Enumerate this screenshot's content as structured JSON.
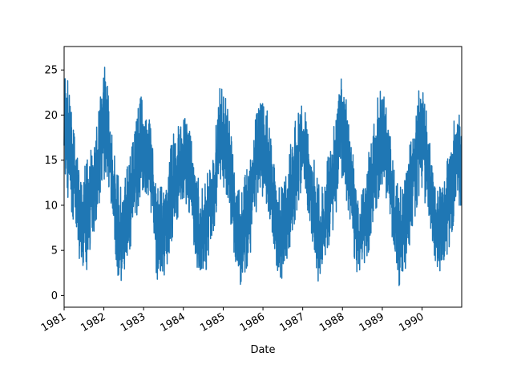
{
  "chart_data": {
    "type": "line",
    "title": "",
    "xlabel": "Date",
    "ylabel": "",
    "xlim": [
      "1981-01-01",
      "1990-12-31"
    ],
    "ylim": [
      -1.3,
      27.6
    ],
    "y_ticks": [
      0,
      5,
      10,
      15,
      20,
      25
    ],
    "x_ticks": [
      {
        "label": "1981",
        "date": "1981-01-01"
      },
      {
        "label": "1982",
        "date": "1982-01-01"
      },
      {
        "label": "1983",
        "date": "1983-01-01"
      },
      {
        "label": "1984",
        "date": "1984-01-01"
      },
      {
        "label": "1985",
        "date": "1985-01-01"
      },
      {
        "label": "1986",
        "date": "1986-01-01"
      },
      {
        "label": "1987",
        "date": "1987-01-01"
      },
      {
        "label": "1988",
        "date": "1988-01-01"
      },
      {
        "label": "1989",
        "date": "1989-01-01"
      },
      {
        "label": "1990",
        "date": "1990-01-01"
      }
    ],
    "grid": false,
    "line_color": "#1f77b4",
    "series": [
      {
        "x": [
          "1981-01-01",
          "1981-02-01",
          "1981-03-01",
          "1981-04-01",
          "1981-05-01",
          "1981-06-01",
          "1981-07-01",
          "1981-08-01",
          "1981-09-01",
          "1981-10-01",
          "1981-11-01",
          "1981-12-01",
          "1982-01-01",
          "1982-02-01",
          "1982-03-01",
          "1982-04-01",
          "1982-05-01",
          "1982-06-01",
          "1982-07-01",
          "1982-08-01",
          "1982-09-01",
          "1982-10-01",
          "1982-11-01",
          "1982-12-01",
          "1983-01-01",
          "1983-02-01",
          "1983-03-01",
          "1983-04-01",
          "1983-05-01",
          "1983-06-01",
          "1983-07-01",
          "1983-08-01",
          "1983-09-01",
          "1983-10-01",
          "1983-11-01",
          "1983-12-01",
          "1984-01-01",
          "1984-02-01",
          "1984-03-01",
          "1984-04-01",
          "1984-05-01",
          "1984-06-01",
          "1984-07-01",
          "1984-08-01",
          "1984-09-01",
          "1984-10-01",
          "1984-11-01",
          "1984-12-01",
          "1985-01-01",
          "1985-02-01",
          "1985-03-01",
          "1985-04-01",
          "1985-05-01",
          "1985-06-01",
          "1985-07-01",
          "1985-08-01",
          "1985-09-01",
          "1985-10-01",
          "1985-11-01",
          "1985-12-01",
          "1986-01-01",
          "1986-02-01",
          "1986-03-01",
          "1986-04-01",
          "1986-05-01",
          "1986-06-01",
          "1986-07-01",
          "1986-08-01",
          "1986-09-01",
          "1986-10-01",
          "1986-11-01",
          "1986-12-01",
          "1987-01-01",
          "1987-02-01",
          "1987-03-01",
          "1987-04-01",
          "1987-05-01",
          "1987-06-01",
          "1987-07-01",
          "1987-08-01",
          "1987-09-01",
          "1987-10-01",
          "1987-11-01",
          "1987-12-01",
          "1988-01-01",
          "1988-02-01",
          "1988-03-01",
          "1988-04-01",
          "1988-05-01",
          "1988-06-01",
          "1988-07-01",
          "1988-08-01",
          "1988-09-01",
          "1988-10-01",
          "1988-11-01",
          "1988-12-01",
          "1989-01-01",
          "1989-02-01",
          "1989-03-01",
          "1989-04-01",
          "1989-05-01",
          "1989-06-01",
          "1989-07-01",
          "1989-08-01",
          "1989-09-01",
          "1989-10-01",
          "1989-11-01",
          "1989-12-01",
          "1990-01-01",
          "1990-02-01",
          "1990-03-01",
          "1990-04-01",
          "1990-05-01",
          "1990-06-01",
          "1990-07-01",
          "1990-08-01",
          "1990-09-01",
          "1990-10-01",
          "1990-11-01",
          "1990-12-01"
        ],
        "y_high": [
          25,
          24,
          21,
          18,
          16,
          13,
          14,
          15,
          16,
          17,
          19,
          22,
          26,
          24,
          20,
          16,
          14,
          12,
          12,
          14,
          16,
          18,
          20,
          22,
          22,
          21,
          19,
          16,
          14,
          12,
          12,
          14,
          16,
          18,
          19,
          20,
          20,
          20,
          18,
          16,
          14,
          12,
          12,
          13,
          15,
          18,
          19,
          24,
          22,
          22,
          19,
          16,
          13,
          12,
          12,
          14,
          16,
          18,
          20,
          21,
          22,
          21,
          19,
          16,
          13,
          12,
          12,
          14,
          16,
          18,
          20,
          21,
          21,
          20,
          18,
          16,
          14,
          12,
          12,
          14,
          16,
          18,
          20,
          24,
          24,
          22,
          19,
          16,
          14,
          12,
          12,
          14,
          16,
          18,
          20,
          23,
          23,
          21,
          19,
          16,
          13,
          12,
          12,
          14,
          16,
          18,
          20,
          23,
          23,
          21,
          19,
          16,
          13,
          12,
          12,
          14,
          16,
          18,
          20,
          20
        ],
        "y_low": [
          12,
          11,
          10,
          8,
          6,
          3,
          2,
          3,
          5,
          7,
          9,
          11,
          13,
          12,
          10,
          7,
          3,
          0,
          1,
          2,
          5,
          7,
          9,
          11,
          12,
          11,
          9,
          6,
          2,
          1,
          2,
          3,
          5,
          7,
          8,
          10,
          11,
          10,
          9,
          6,
          3,
          1,
          2,
          3,
          4,
          7,
          9,
          11,
          11,
          10,
          9,
          6,
          2,
          1,
          2,
          3,
          4,
          7,
          9,
          11,
          11,
          10,
          9,
          6,
          2,
          1,
          2,
          3,
          4,
          7,
          9,
          11,
          12,
          10,
          9,
          6,
          3,
          1,
          2,
          4,
          5,
          7,
          9,
          11,
          12,
          11,
          9,
          6,
          3,
          2,
          3,
          4,
          5,
          7,
          9,
          11,
          12,
          11,
          9,
          6,
          3,
          1,
          2,
          3,
          5,
          7,
          9,
          11,
          12,
          10,
          9,
          6,
          4,
          2,
          3,
          4,
          5,
          7,
          9,
          10
        ]
      }
    ]
  }
}
